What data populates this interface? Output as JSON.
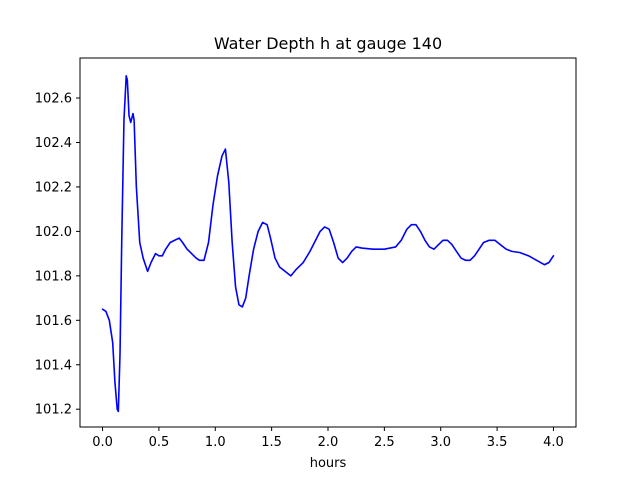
{
  "chart_data": {
    "type": "line",
    "title": "Water Depth h at gauge 140",
    "xlabel": "hours",
    "ylabel": "",
    "xlim": [
      -0.2,
      4.2
    ],
    "ylim": [
      101.12,
      102.78
    ],
    "xticks": [
      0.0,
      0.5,
      1.0,
      1.5,
      2.0,
      2.5,
      3.0,
      3.5,
      4.0
    ],
    "xtick_labels": [
      "0.0",
      "0.5",
      "1.0",
      "1.5",
      "2.0",
      "2.5",
      "3.0",
      "3.5",
      "4.0"
    ],
    "yticks": [
      101.2,
      101.4,
      101.6,
      101.8,
      102.0,
      102.2,
      102.4,
      102.6
    ],
    "ytick_labels": [
      "101.2",
      "101.4",
      "101.6",
      "101.8",
      "102.0",
      "102.2",
      "102.4",
      "102.6"
    ],
    "grid": false,
    "series": [
      {
        "color": "#0000ff",
        "x": [
          0.0,
          0.03,
          0.06,
          0.09,
          0.11,
          0.13,
          0.14,
          0.155,
          0.17,
          0.19,
          0.21,
          0.22,
          0.235,
          0.25,
          0.27,
          0.28,
          0.3,
          0.33,
          0.36,
          0.38,
          0.4,
          0.43,
          0.47,
          0.5,
          0.53,
          0.56,
          0.6,
          0.64,
          0.68,
          0.71,
          0.75,
          0.79,
          0.83,
          0.86,
          0.9,
          0.94,
          0.98,
          1.02,
          1.06,
          1.09,
          1.12,
          1.15,
          1.18,
          1.21,
          1.24,
          1.27,
          1.3,
          1.34,
          1.38,
          1.42,
          1.46,
          1.49,
          1.53,
          1.57,
          1.62,
          1.67,
          1.72,
          1.78,
          1.84,
          1.89,
          1.93,
          1.97,
          2.01,
          2.05,
          2.09,
          2.13,
          2.17,
          2.21,
          2.25,
          2.3,
          2.4,
          2.5,
          2.6,
          2.65,
          2.7,
          2.74,
          2.78,
          2.82,
          2.86,
          2.9,
          2.94,
          2.98,
          3.02,
          3.06,
          3.1,
          3.14,
          3.18,
          3.22,
          3.26,
          3.3,
          3.34,
          3.38,
          3.43,
          3.48,
          3.53,
          3.58,
          3.63,
          3.7,
          3.78,
          3.85,
          3.92,
          3.96,
          4.0
        ],
        "y": [
          101.65,
          101.64,
          101.6,
          101.5,
          101.32,
          101.2,
          101.19,
          101.45,
          101.95,
          102.5,
          102.7,
          102.68,
          102.52,
          102.49,
          102.53,
          102.5,
          102.2,
          101.95,
          101.88,
          101.85,
          101.82,
          101.86,
          101.9,
          101.89,
          101.89,
          101.92,
          101.95,
          101.96,
          101.97,
          101.95,
          101.92,
          101.9,
          101.88,
          101.87,
          101.87,
          101.95,
          102.12,
          102.25,
          102.34,
          102.37,
          102.22,
          101.95,
          101.75,
          101.67,
          101.66,
          101.7,
          101.8,
          101.92,
          102.0,
          102.04,
          102.03,
          101.97,
          101.88,
          101.84,
          101.82,
          101.8,
          101.83,
          101.86,
          101.91,
          101.96,
          102.0,
          102.02,
          102.01,
          101.95,
          101.88,
          101.86,
          101.88,
          101.91,
          101.93,
          101.925,
          101.92,
          101.92,
          101.93,
          101.96,
          102.01,
          102.03,
          102.03,
          102.0,
          101.96,
          101.93,
          101.92,
          101.94,
          101.96,
          101.96,
          101.94,
          101.91,
          101.88,
          101.87,
          101.87,
          101.89,
          101.92,
          101.95,
          101.96,
          101.96,
          101.94,
          101.92,
          101.91,
          101.905,
          101.89,
          101.87,
          101.85,
          101.86,
          101.89
        ]
      }
    ]
  }
}
